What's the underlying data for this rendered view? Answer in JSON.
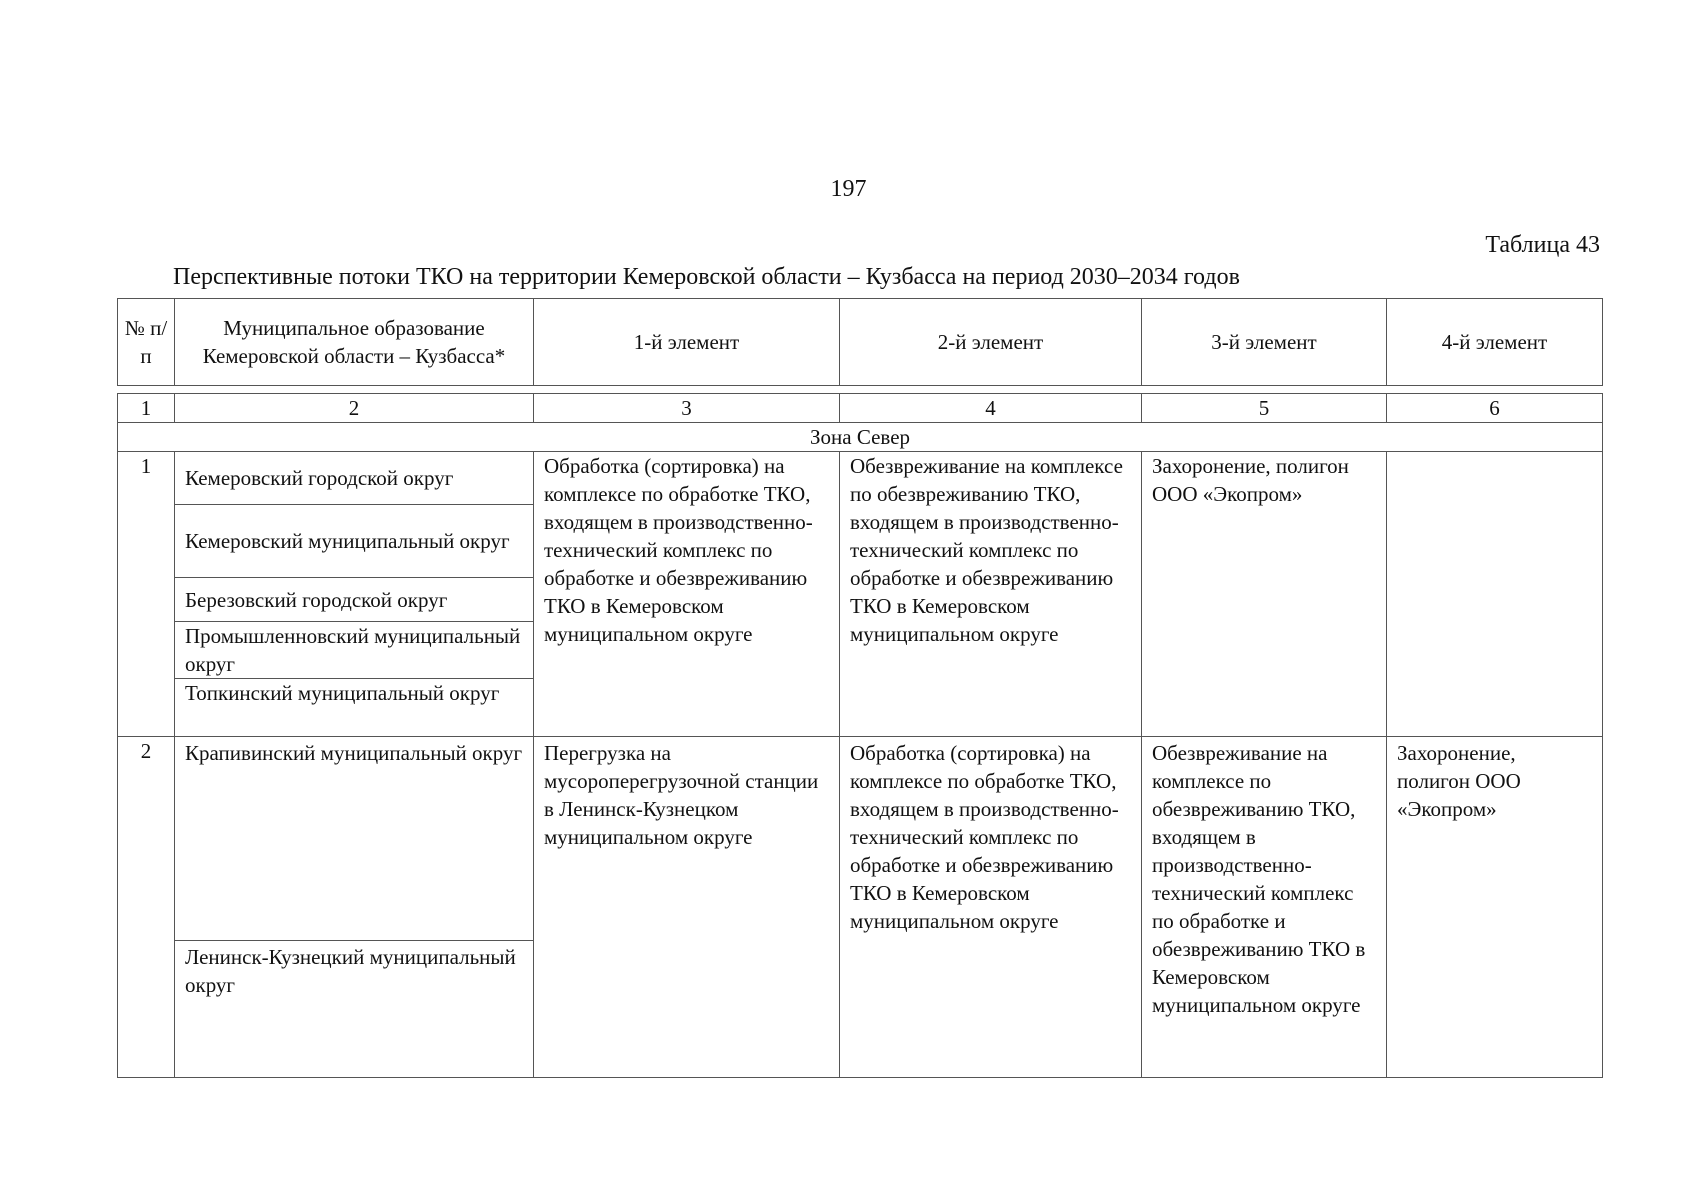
{
  "page_number": "197",
  "table_label": "Таблица 43",
  "table_title": "Перспективные потоки ТКО на территории Кемеровской области – Кузбасса на период 2030–2034 годов",
  "columns": [
    "№ п/п",
    "Муниципальное образование Кемеровской области – Кузбасса*",
    "1-й элемент",
    "2-й элемент",
    "3-й элемент",
    "4-й элемент"
  ],
  "column_numbers": [
    "1",
    "2",
    "3",
    "4",
    "5",
    "6"
  ],
  "zone": "Зона Север",
  "rows": [
    {
      "num": "1",
      "municipalities": [
        "Кемеровский городской округ",
        "Кемеровский муниципальный округ",
        "Березовский городской округ",
        "Промышленновский муниципальный округ",
        "Топкинский муниципальный округ"
      ],
      "element1": "Обработка (сортировка) на комплексе по обработке ТКО, входящем в производственно-технический комплекс по обработке и обезвреживанию ТКО в Кемеровском муниципальном округе",
      "element2": "Обезвреживание на комплексе по обезвреживанию ТКО, входящем в производственно-технический комплекс по обработке и обезвреживанию ТКО в Кемеровском муниципальном округе",
      "element3": "Захоронение, полигон ООО «Экопром»",
      "element4": ""
    },
    {
      "num": "2",
      "municipalities": [
        "Крапивинский муниципальный округ",
        "Ленинск-Кузнецкий муниципальный округ"
      ],
      "element1": "Перегрузка на мусороперегрузочной станции в Ленинск-Кузнецком муниципальном округе",
      "element2": "Обработка (сортировка) на комплексе по обработке ТКО, входящем в производственно-технический комплекс по обработке и обезвреживанию ТКО в Кемеровском муниципальном округе",
      "element3": "Обезвреживание на комплексе по обезвреживанию ТКО, входящем в производственно-технический комплекс по обработке и обезвреживанию ТКО в Кемеровском муниципальном округе",
      "element4": "Захоронение, полигон ООО «Экопром»"
    }
  ]
}
